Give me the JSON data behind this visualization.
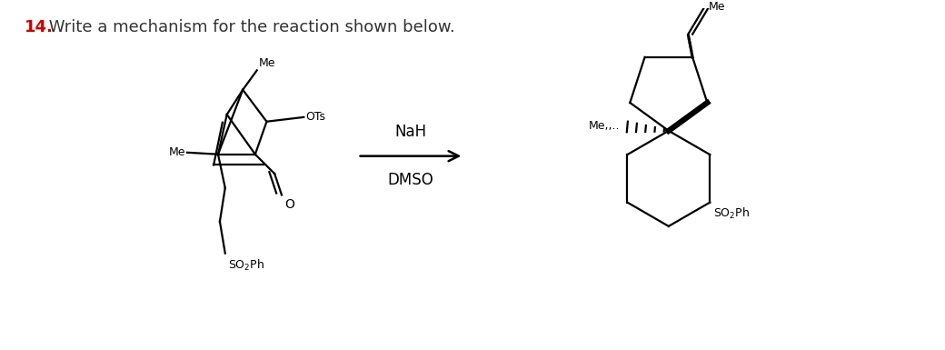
{
  "title_number": "14.",
  "title_text": " Write a mechanism for the reaction shown below.",
  "title_number_color": "#cc0000",
  "title_text_color": "#333333",
  "reagent_top": "NaH",
  "reagent_bottom": "DMSO",
  "background_color": "#ffffff",
  "fig_width": 10.4,
  "fig_height": 3.85,
  "dpi": 100
}
